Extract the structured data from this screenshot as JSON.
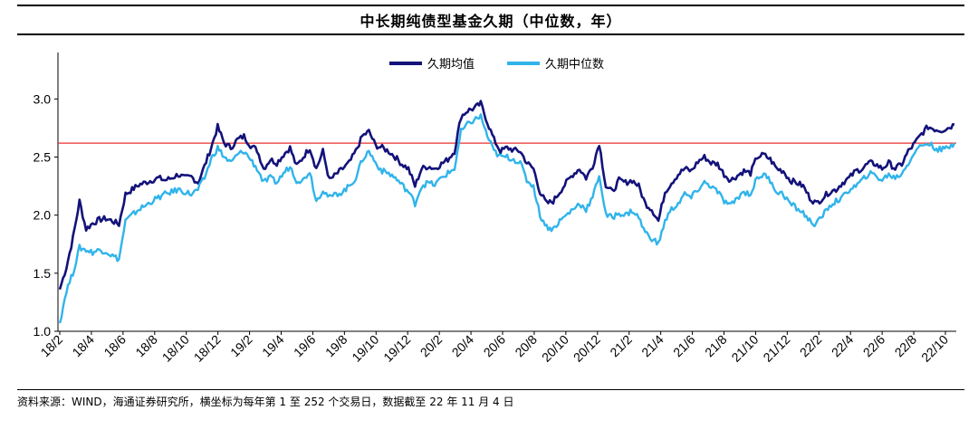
{
  "chart_data": {
    "type": "line",
    "title": "中长期纯债型基金久期（中位数，年）",
    "source": "资料来源：WIND，海通证券研究所，横坐标为每年第 1 至 252 个交易日，数据截至 22 年 11 月 4 日",
    "x_tick_labels": [
      "18/2",
      "18/4",
      "18/6",
      "18/8",
      "18/10",
      "18/12",
      "19/2",
      "19/4",
      "19/6",
      "19/8",
      "19/10",
      "19/12",
      "20/2",
      "20/4",
      "20/6",
      "20/8",
      "20/10",
      "20/12",
      "21/2",
      "21/4",
      "21/6",
      "21/8",
      "21/10",
      "21/12",
      "22/2",
      "22/4",
      "22/6",
      "22/8",
      "22/10"
    ],
    "y_tick_labels": [
      "1.0",
      "1.5",
      "2.0",
      "2.5",
      "3.0"
    ],
    "ylim": [
      1.0,
      3.4
    ],
    "reference_line": {
      "value": 2.62,
      "color": "#e8312f"
    },
    "legend_position": "top-center",
    "series": [
      {
        "name": "久期均值",
        "color": "#13127a",
        "values": [
          1.36,
          1.55,
          1.8,
          2.12,
          1.88,
          1.93,
          1.96,
          1.97,
          1.95,
          1.92,
          2.18,
          2.22,
          2.26,
          2.28,
          2.3,
          2.32,
          2.3,
          2.32,
          2.35,
          2.32,
          2.33,
          2.28,
          2.42,
          2.58,
          2.76,
          2.62,
          2.58,
          2.65,
          2.68,
          2.6,
          2.56,
          2.4,
          2.48,
          2.45,
          2.52,
          2.58,
          2.42,
          2.5,
          2.58,
          2.4,
          2.55,
          2.3,
          2.35,
          2.4,
          2.45,
          2.55,
          2.68,
          2.72,
          2.6,
          2.58,
          2.55,
          2.5,
          2.44,
          2.4,
          2.25,
          2.4,
          2.42,
          2.4,
          2.44,
          2.48,
          2.55,
          2.85,
          2.9,
          2.92,
          2.96,
          2.8,
          2.65,
          2.55,
          2.58,
          2.56,
          2.55,
          2.45,
          2.4,
          2.2,
          2.1,
          2.12,
          2.2,
          2.28,
          2.35,
          2.4,
          2.32,
          2.42,
          2.62,
          2.25,
          2.2,
          2.3,
          2.28,
          2.3,
          2.25,
          2.1,
          2.05,
          1.95,
          2.2,
          2.28,
          2.35,
          2.4,
          2.38,
          2.46,
          2.5,
          2.45,
          2.44,
          2.35,
          2.3,
          2.34,
          2.38,
          2.36,
          2.5,
          2.52,
          2.48,
          2.4,
          2.38,
          2.3,
          2.28,
          2.25,
          2.15,
          2.1,
          2.15,
          2.2,
          2.22,
          2.28,
          2.32,
          2.38,
          2.4,
          2.45,
          2.44,
          2.4,
          2.45,
          2.4,
          2.44,
          2.55,
          2.62,
          2.7,
          2.76,
          2.74,
          2.73,
          2.75,
          2.78
        ]
      },
      {
        "name": "久期中位数",
        "color": "#30b4ea",
        "values": [
          1.07,
          1.35,
          1.5,
          1.72,
          1.7,
          1.68,
          1.7,
          1.69,
          1.65,
          1.62,
          1.95,
          2.0,
          2.05,
          2.08,
          2.12,
          2.15,
          2.18,
          2.2,
          2.22,
          2.2,
          2.18,
          2.22,
          2.32,
          2.48,
          2.58,
          2.5,
          2.45,
          2.52,
          2.55,
          2.48,
          2.4,
          2.28,
          2.32,
          2.28,
          2.36,
          2.42,
          2.3,
          2.3,
          2.38,
          2.12,
          2.22,
          2.15,
          2.18,
          2.2,
          2.25,
          2.32,
          2.48,
          2.55,
          2.45,
          2.38,
          2.36,
          2.32,
          2.26,
          2.2,
          2.1,
          2.25,
          2.28,
          2.26,
          2.32,
          2.36,
          2.4,
          2.72,
          2.78,
          2.82,
          2.85,
          2.68,
          2.55,
          2.5,
          2.5,
          2.48,
          2.45,
          2.3,
          2.25,
          2.0,
          1.9,
          1.88,
          1.95,
          2.0,
          2.05,
          2.1,
          2.05,
          2.15,
          2.35,
          2.0,
          1.98,
          2.02,
          2.0,
          2.04,
          1.98,
          1.85,
          1.8,
          1.75,
          1.95,
          2.05,
          2.1,
          2.18,
          2.15,
          2.22,
          2.28,
          2.25,
          2.2,
          2.12,
          2.08,
          2.15,
          2.2,
          2.18,
          2.32,
          2.35,
          2.3,
          2.2,
          2.18,
          2.1,
          2.06,
          2.02,
          1.95,
          1.92,
          2.0,
          2.08,
          2.12,
          2.15,
          2.22,
          2.25,
          2.3,
          2.36,
          2.34,
          2.3,
          2.35,
          2.32,
          2.36,
          2.45,
          2.55,
          2.6,
          2.62,
          2.58,
          2.56,
          2.58,
          2.62
        ]
      }
    ]
  }
}
